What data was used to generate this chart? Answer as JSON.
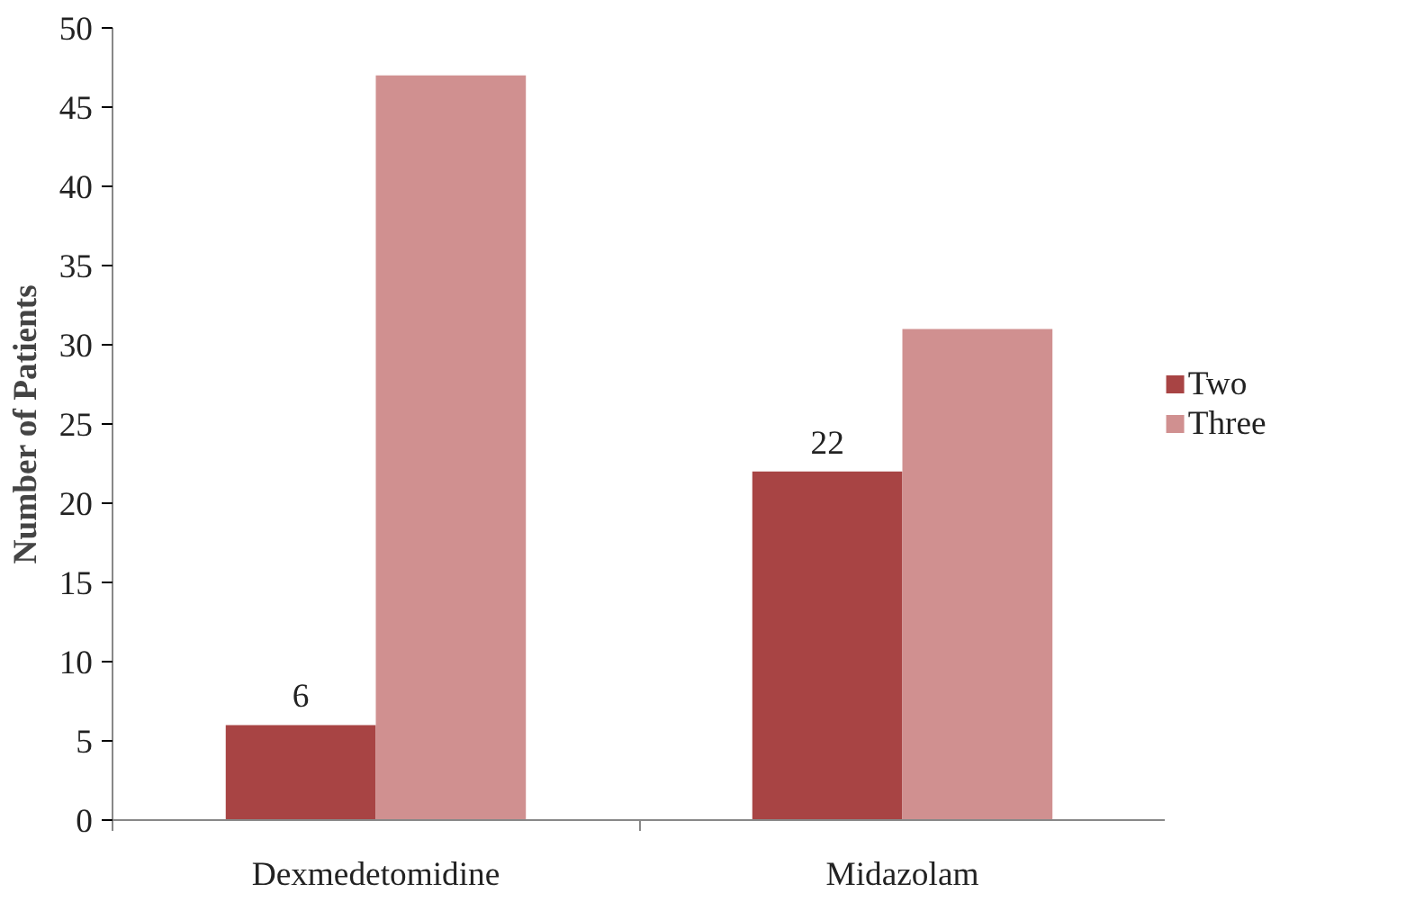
{
  "chart_data": {
    "type": "bar",
    "ylabel": "Number of Patients",
    "categories": [
      "Dexmedetomidine",
      "Midazolam"
    ],
    "series": [
      {
        "name": "Two",
        "color": "#a84444",
        "values": [
          6,
          22
        ],
        "value_labels": [
          "6",
          "22"
        ]
      },
      {
        "name": "Three",
        "color": "#d09090",
        "values": [
          47,
          31
        ]
      }
    ],
    "ylim": [
      0,
      50
    ],
    "yticks": [
      0,
      5,
      10,
      15,
      20,
      25,
      30,
      35,
      40,
      45,
      50
    ],
    "grid": false,
    "legend": "right"
  }
}
